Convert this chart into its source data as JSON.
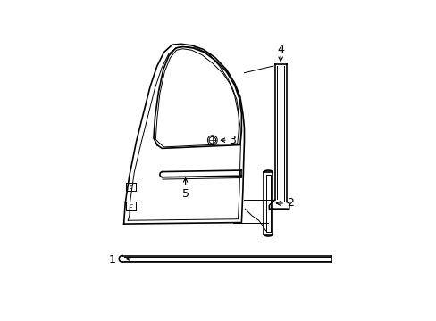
{
  "background_color": "#ffffff",
  "line_color": "#000000",
  "lw": 1.2,
  "tlw": 0.7,
  "fs": 9
}
